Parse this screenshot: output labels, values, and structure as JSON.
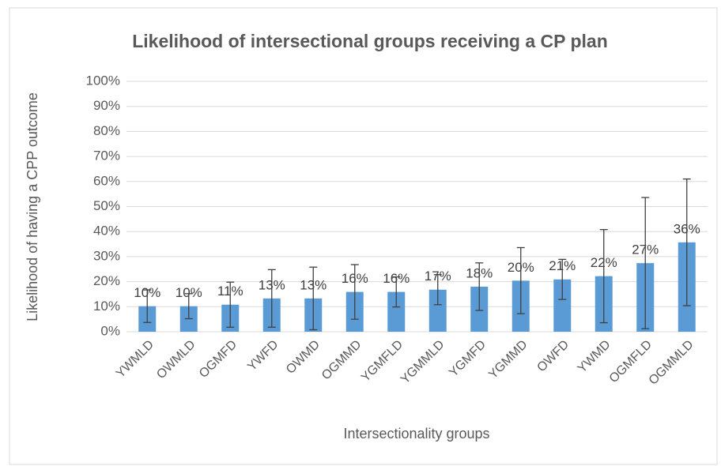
{
  "chart_data": {
    "type": "bar",
    "title": "Likelihood of intersectional groups receiving a CP plan",
    "x_label": "Intersectionality groups",
    "y_label": "Likelihood of having a CPP outcome",
    "categories": [
      "YWMLD",
      "OWMLD",
      "OGMFD",
      "YWFD",
      "OWMD",
      "OGMMD",
      "YGMFLD",
      "YGMMLD",
      "YGMFD",
      "YGMMD",
      "OWFD",
      "YWMD",
      "OGMFLD",
      "OGMMLD"
    ],
    "values": [
      10.2,
      10.2,
      10.8,
      13.3,
      13.3,
      15.9,
      15.9,
      16.8,
      18.0,
      20.4,
      20.9,
      22.2,
      27.4,
      35.7
    ],
    "value_labels": [
      "10%",
      "10%",
      "11%",
      "13%",
      "13%",
      "16%",
      "16%",
      "17%",
      "18%",
      "20%",
      "21%",
      "22%",
      "27%",
      "36%"
    ],
    "errors": [
      6.5,
      5,
      9,
      11.5,
      12.5,
      10.9,
      6,
      6,
      9.5,
      13.2,
      8,
      18.6,
      26.2,
      25.3
    ],
    "color": "#5b9bd5",
    "ylim": [
      0,
      100
    ],
    "yticks": [
      {
        "value": 0,
        "label": "0%"
      },
      {
        "value": 10,
        "label": "10%"
      },
      {
        "value": 20,
        "label": "20%"
      },
      {
        "value": 30,
        "label": "30%"
      },
      {
        "value": 40,
        "label": "40%"
      },
      {
        "value": 50,
        "label": "50%"
      },
      {
        "value": 60,
        "label": "60%"
      },
      {
        "value": 70,
        "label": "70%"
      },
      {
        "value": 80,
        "label": "80%"
      },
      {
        "value": 90,
        "label": "90%"
      },
      {
        "value": 100,
        "label": "100%"
      }
    ],
    "grid": true
  }
}
